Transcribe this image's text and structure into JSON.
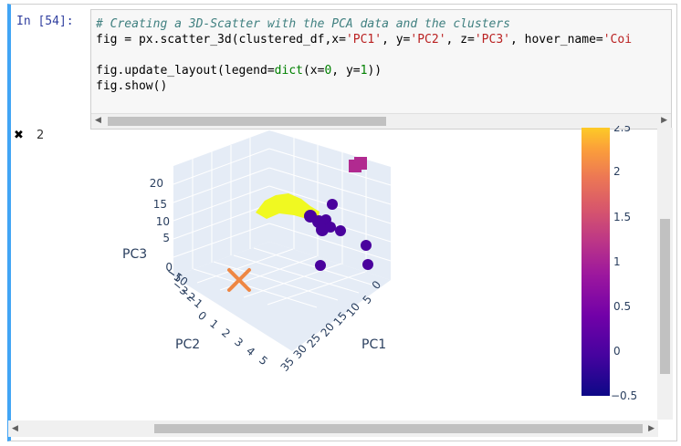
{
  "cell": {
    "prompt": "In [54]:",
    "code": {
      "line1_comment": "# Creating a 3D-Scatter with the PCA data and the clusters",
      "line2_a": "fig = px.scatter_3d(clustered_df,x=",
      "line2_s1": "'PC1'",
      "line2_b": ", y=",
      "line2_s2": "'PC2'",
      "line2_c": ", z=",
      "line2_s3": "'PC3'",
      "line2_d": ", hover_name=",
      "line2_s4": "'Coi",
      "line4_a": "fig.update_layout(legend=",
      "line4_kw": "dict",
      "line4_b": "(x=",
      "line4_n1": "0",
      "line4_c": ", y=",
      "line4_n2": "1",
      "line4_d": "))",
      "line5": "fig.show()"
    }
  },
  "output": {
    "close_symbol": "✖",
    "count": "2"
  },
  "plot": {
    "axes": {
      "pc1_label": "PC1",
      "pc2_label": "PC2",
      "pc3_label": "PC3",
      "pc3_ticks": [
        "20",
        "15",
        "10",
        "5",
        "0",
        "−5",
        "−10"
      ],
      "pc2_ticks": [
        "−3",
        "−2",
        "−1",
        "0",
        "1",
        "2",
        "3",
        "4",
        "5"
      ],
      "pc1_ticks": [
        "0",
        "5",
        "10",
        "15",
        "20",
        "25",
        "30",
        "35"
      ]
    },
    "colorbar": {
      "ticks": [
        "2",
        "1.5",
        "1",
        "0.5",
        "0",
        "−0.5"
      ],
      "top_partial": "2.5"
    },
    "colors": {
      "cluster0": "#4a029d",
      "cluster1": "#f0f921",
      "cluster2": "#ee8744",
      "cluster3": "#b12a90",
      "scene_bg": "#e5ecf6"
    }
  }
}
